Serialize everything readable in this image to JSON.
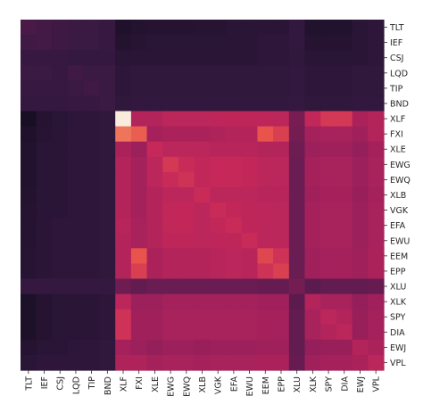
{
  "chart_data": {
    "type": "heatmap",
    "title": "",
    "xlabel": "",
    "ylabel": "",
    "grid": false,
    "colormap": "rocket",
    "colorbar": false,
    "x_labels": [
      "TLT",
      "IEF",
      "CSJ",
      "LQD",
      "TIP",
      "BND",
      "XLF",
      "FXI",
      "XLE",
      "EWG",
      "EWQ",
      "XLB",
      "VGK",
      "EFA",
      "EWU",
      "EEM",
      "EPP",
      "XLU",
      "XLK",
      "SPY",
      "DIA",
      "EWJ",
      "VPL"
    ],
    "y_labels": [
      "TLT",
      "IEF",
      "CSJ",
      "LQD",
      "TIP",
      "BND",
      "XLF",
      "FXI",
      "XLE",
      "EWG",
      "EWQ",
      "XLB",
      "VGK",
      "EFA",
      "EWU",
      "EEM",
      "EPP",
      "XLU",
      "XLK",
      "SPY",
      "DIA",
      "EWJ",
      "VPL"
    ],
    "values": [
      [
        0.22,
        0.2,
        0.18,
        0.17,
        0.17,
        0.16,
        0.05,
        0.07,
        0.08,
        0.08,
        0.08,
        0.09,
        0.09,
        0.1,
        0.1,
        0.11,
        0.11,
        0.14,
        0.06,
        0.06,
        0.06,
        0.1,
        0.12
      ],
      [
        0.19,
        0.2,
        0.18,
        0.17,
        0.17,
        0.16,
        0.07,
        0.09,
        0.1,
        0.1,
        0.1,
        0.1,
        0.1,
        0.11,
        0.11,
        0.12,
        0.12,
        0.14,
        0.08,
        0.08,
        0.08,
        0.11,
        0.12
      ],
      [
        0.16,
        0.16,
        0.16,
        0.15,
        0.15,
        0.15,
        0.1,
        0.11,
        0.11,
        0.11,
        0.11,
        0.11,
        0.11,
        0.11,
        0.11,
        0.12,
        0.12,
        0.13,
        0.1,
        0.1,
        0.1,
        0.11,
        0.12
      ],
      [
        0.17,
        0.17,
        0.16,
        0.19,
        0.17,
        0.17,
        0.12,
        0.13,
        0.13,
        0.13,
        0.13,
        0.13,
        0.13,
        0.13,
        0.13,
        0.13,
        0.13,
        0.14,
        0.12,
        0.12,
        0.12,
        0.13,
        0.13
      ],
      [
        0.16,
        0.16,
        0.16,
        0.17,
        0.19,
        0.17,
        0.12,
        0.13,
        0.13,
        0.13,
        0.13,
        0.13,
        0.13,
        0.13,
        0.13,
        0.13,
        0.13,
        0.14,
        0.12,
        0.12,
        0.12,
        0.13,
        0.13
      ],
      [
        0.15,
        0.15,
        0.15,
        0.16,
        0.16,
        0.17,
        0.13,
        0.14,
        0.14,
        0.14,
        0.14,
        0.14,
        0.14,
        0.14,
        0.14,
        0.14,
        0.14,
        0.15,
        0.13,
        0.13,
        0.13,
        0.14,
        0.14
      ],
      [
        0.02,
        0.08,
        0.1,
        0.12,
        0.12,
        0.13,
        1.0,
        0.5,
        0.5,
        0.52,
        0.52,
        0.52,
        0.53,
        0.53,
        0.53,
        0.53,
        0.52,
        0.35,
        0.54,
        0.6,
        0.6,
        0.48,
        0.5
      ],
      [
        0.05,
        0.09,
        0.11,
        0.12,
        0.12,
        0.13,
        0.75,
        0.7,
        0.46,
        0.48,
        0.48,
        0.48,
        0.49,
        0.5,
        0.5,
        0.68,
        0.62,
        0.34,
        0.46,
        0.47,
        0.47,
        0.45,
        0.5
      ],
      [
        0.06,
        0.1,
        0.11,
        0.12,
        0.12,
        0.13,
        0.48,
        0.44,
        0.55,
        0.52,
        0.52,
        0.52,
        0.51,
        0.51,
        0.51,
        0.5,
        0.5,
        0.33,
        0.44,
        0.45,
        0.45,
        0.42,
        0.46
      ],
      [
        0.06,
        0.1,
        0.11,
        0.12,
        0.12,
        0.13,
        0.5,
        0.46,
        0.52,
        0.6,
        0.56,
        0.54,
        0.55,
        0.55,
        0.54,
        0.52,
        0.52,
        0.32,
        0.46,
        0.47,
        0.47,
        0.44,
        0.47
      ],
      [
        0.06,
        0.1,
        0.11,
        0.12,
        0.12,
        0.13,
        0.5,
        0.46,
        0.52,
        0.56,
        0.58,
        0.54,
        0.55,
        0.55,
        0.54,
        0.52,
        0.52,
        0.32,
        0.46,
        0.47,
        0.47,
        0.44,
        0.47
      ],
      [
        0.07,
        0.1,
        0.11,
        0.12,
        0.12,
        0.13,
        0.5,
        0.46,
        0.5,
        0.52,
        0.52,
        0.56,
        0.52,
        0.52,
        0.52,
        0.51,
        0.51,
        0.32,
        0.45,
        0.46,
        0.46,
        0.43,
        0.46
      ],
      [
        0.08,
        0.1,
        0.11,
        0.12,
        0.12,
        0.13,
        0.5,
        0.46,
        0.5,
        0.54,
        0.54,
        0.52,
        0.56,
        0.54,
        0.53,
        0.52,
        0.52,
        0.32,
        0.46,
        0.47,
        0.47,
        0.44,
        0.47
      ],
      [
        0.08,
        0.11,
        0.12,
        0.12,
        0.12,
        0.13,
        0.51,
        0.47,
        0.5,
        0.54,
        0.54,
        0.52,
        0.54,
        0.56,
        0.53,
        0.52,
        0.52,
        0.32,
        0.46,
        0.47,
        0.47,
        0.44,
        0.47
      ],
      [
        0.08,
        0.11,
        0.12,
        0.12,
        0.12,
        0.13,
        0.5,
        0.47,
        0.5,
        0.53,
        0.53,
        0.52,
        0.53,
        0.53,
        0.56,
        0.52,
        0.52,
        0.32,
        0.46,
        0.47,
        0.47,
        0.44,
        0.47
      ],
      [
        0.09,
        0.11,
        0.12,
        0.12,
        0.12,
        0.13,
        0.5,
        0.68,
        0.48,
        0.5,
        0.5,
        0.5,
        0.51,
        0.52,
        0.51,
        0.64,
        0.58,
        0.32,
        0.45,
        0.46,
        0.46,
        0.45,
        0.48
      ],
      [
        0.09,
        0.11,
        0.12,
        0.12,
        0.12,
        0.13,
        0.5,
        0.62,
        0.48,
        0.5,
        0.5,
        0.5,
        0.51,
        0.52,
        0.51,
        0.58,
        0.62,
        0.32,
        0.45,
        0.46,
        0.46,
        0.45,
        0.48
      ],
      [
        0.15,
        0.15,
        0.15,
        0.15,
        0.15,
        0.15,
        0.33,
        0.3,
        0.32,
        0.32,
        0.32,
        0.32,
        0.32,
        0.32,
        0.32,
        0.31,
        0.31,
        0.34,
        0.28,
        0.3,
        0.3,
        0.3,
        0.31
      ],
      [
        0.04,
        0.08,
        0.1,
        0.11,
        0.11,
        0.12,
        0.52,
        0.44,
        0.44,
        0.46,
        0.46,
        0.46,
        0.46,
        0.46,
        0.46,
        0.45,
        0.45,
        0.28,
        0.5,
        0.47,
        0.47,
        0.42,
        0.45
      ],
      [
        0.04,
        0.08,
        0.1,
        0.11,
        0.11,
        0.12,
        0.58,
        0.45,
        0.45,
        0.47,
        0.47,
        0.47,
        0.47,
        0.47,
        0.47,
        0.46,
        0.46,
        0.3,
        0.47,
        0.52,
        0.5,
        0.43,
        0.46
      ],
      [
        0.04,
        0.08,
        0.1,
        0.11,
        0.11,
        0.12,
        0.58,
        0.45,
        0.45,
        0.47,
        0.47,
        0.47,
        0.47,
        0.47,
        0.47,
        0.46,
        0.46,
        0.3,
        0.47,
        0.5,
        0.52,
        0.43,
        0.46
      ],
      [
        0.08,
        0.1,
        0.11,
        0.12,
        0.12,
        0.13,
        0.46,
        0.44,
        0.42,
        0.44,
        0.44,
        0.43,
        0.44,
        0.44,
        0.44,
        0.45,
        0.45,
        0.3,
        0.42,
        0.43,
        0.43,
        0.5,
        0.48
      ],
      [
        0.1,
        0.12,
        0.12,
        0.12,
        0.12,
        0.13,
        0.49,
        0.49,
        0.46,
        0.47,
        0.47,
        0.46,
        0.47,
        0.47,
        0.47,
        0.48,
        0.48,
        0.31,
        0.45,
        0.46,
        0.46,
        0.48,
        0.52
      ]
    ]
  }
}
